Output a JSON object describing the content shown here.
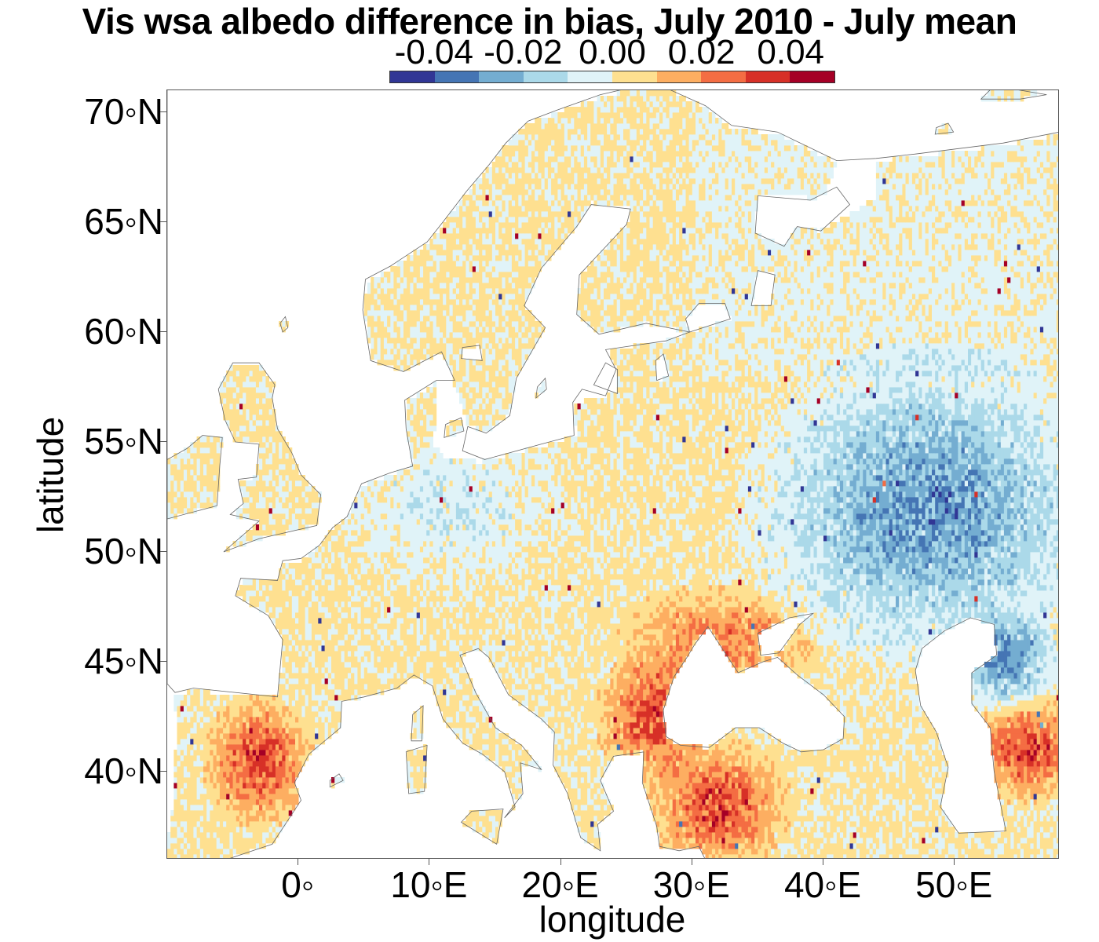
{
  "title": "Vis wsa albedo difference in bias, July 2010 - July mean",
  "colorbar": {
    "tick_labels": [
      "-0.04",
      "-0.02",
      "0.00",
      "0.02",
      "0.04"
    ],
    "tick_values": [
      -0.04,
      -0.02,
      0.0,
      0.02,
      0.04
    ],
    "range": [
      -0.05,
      0.05
    ],
    "colors": [
      "#313695",
      "#4575b4",
      "#74add1",
      "#abd9e9",
      "#e0f3f8",
      "#fee090",
      "#fdae61",
      "#f46d43",
      "#d73027",
      "#a50026"
    ]
  },
  "axes": {
    "xlabel": "longitude",
    "ylabel": "latitude",
    "x_range": [
      -10,
      58
    ],
    "y_range": [
      36,
      71
    ],
    "x_ticks": [
      {
        "value": 0,
        "label": "0◦"
      },
      {
        "value": 10,
        "label": "10◦E"
      },
      {
        "value": 20,
        "label": "20◦E"
      },
      {
        "value": 30,
        "label": "30◦E"
      },
      {
        "value": 40,
        "label": "40◦E"
      },
      {
        "value": 50,
        "label": "50◦E"
      }
    ],
    "y_ticks": [
      {
        "value": 40,
        "label": "40◦N"
      },
      {
        "value": 45,
        "label": "45◦N"
      },
      {
        "value": 50,
        "label": "50◦N"
      },
      {
        "value": 55,
        "label": "55◦N"
      },
      {
        "value": 60,
        "label": "60◦N"
      },
      {
        "value": 65,
        "label": "65◦N"
      },
      {
        "value": 70,
        "label": "70◦N"
      }
    ]
  },
  "map": {
    "region": "Europe",
    "variable": "visible white-sky albedo bias difference",
    "patterns": [
      {
        "area": "western Russia / Kazakhstan steppe",
        "lon": [
          38,
          58
        ],
        "lat": [
          47,
          57
        ],
        "value": -0.03
      },
      {
        "area": "central Europe / Poland",
        "lon": [
          6,
          18
        ],
        "lat": [
          50,
          54
        ],
        "value": -0.01
      },
      {
        "area": "northern Caspian",
        "lon": [
          52,
          56
        ],
        "lat": [
          44,
          46
        ],
        "value": -0.03
      },
      {
        "area": "central Spain",
        "lon": [
          -5,
          -1
        ],
        "lat": [
          39,
          42
        ],
        "value": 0.03
      },
      {
        "area": "Anatolia",
        "lon": [
          29,
          35
        ],
        "lat": [
          37,
          40
        ],
        "value": 0.03
      },
      {
        "area": "Balkans / Bulgaria",
        "lon": [
          25,
          29
        ],
        "lat": [
          41,
          44
        ],
        "value": 0.03
      },
      {
        "area": "Ukraine south / Crimea",
        "lon": [
          27,
          37
        ],
        "lat": [
          45,
          47
        ],
        "value": 0.02
      },
      {
        "area": "south of Caspian",
        "lon": [
          53,
          58
        ],
        "lat": [
          40,
          42
        ],
        "value": 0.03
      }
    ]
  }
}
